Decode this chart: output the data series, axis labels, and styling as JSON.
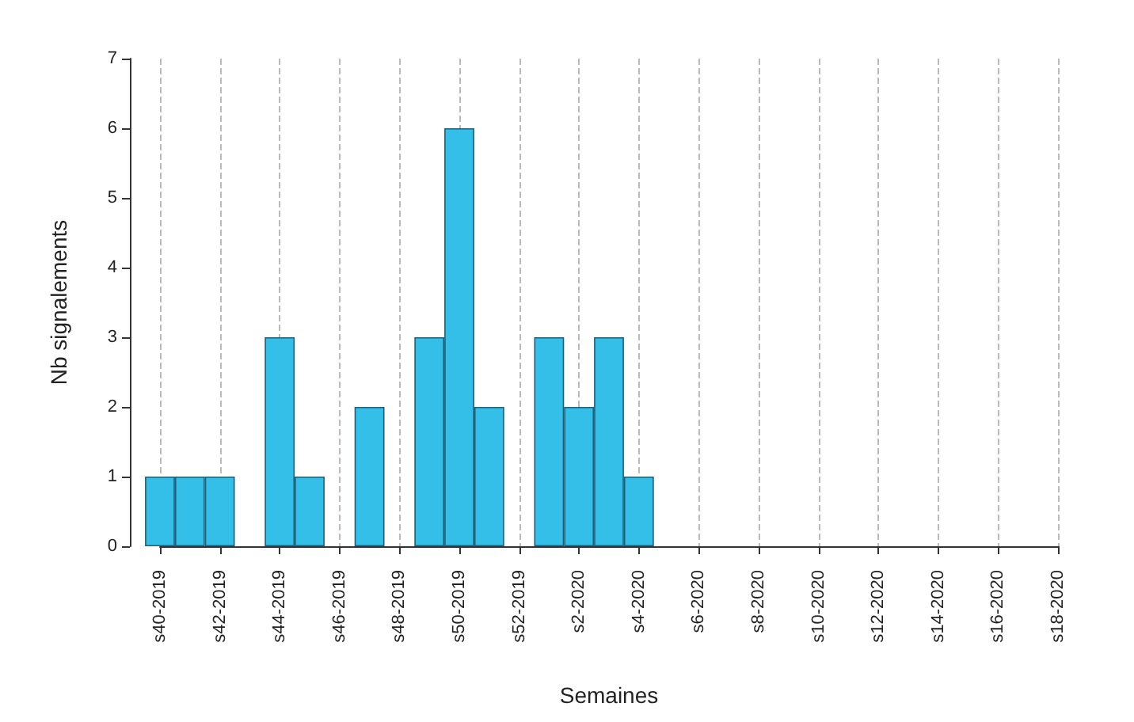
{
  "chart_data": {
    "type": "bar",
    "xlabel": "Semaines",
    "ylabel": "Nb signalements",
    "categories": [
      "s40-2019",
      null,
      "s42-2019",
      null,
      "s44-2019",
      null,
      "s46-2019",
      null,
      "s48-2019",
      null,
      "s50-2019",
      null,
      "s52-2019",
      null,
      "s2-2020",
      null,
      "s4-2020",
      null,
      "s6-2020",
      null,
      "s8-2020",
      null,
      "s10-2020",
      null,
      "s12-2020",
      null,
      "s14-2020",
      null,
      "s16-2020",
      null,
      "s18-2020"
    ],
    "values": [
      1,
      1,
      1,
      0,
      3,
      1,
      0,
      2,
      0,
      3,
      6,
      2,
      0,
      3,
      2,
      3,
      1,
      0,
      0,
      0,
      0,
      0,
      0,
      0,
      0,
      0,
      0,
      0,
      0,
      0,
      0
    ],
    "color": "#33bfe8",
    "ylim": [
      0,
      7
    ],
    "yticks": [
      0,
      1,
      2,
      3,
      4,
      5,
      6,
      7
    ],
    "grid": "x"
  }
}
